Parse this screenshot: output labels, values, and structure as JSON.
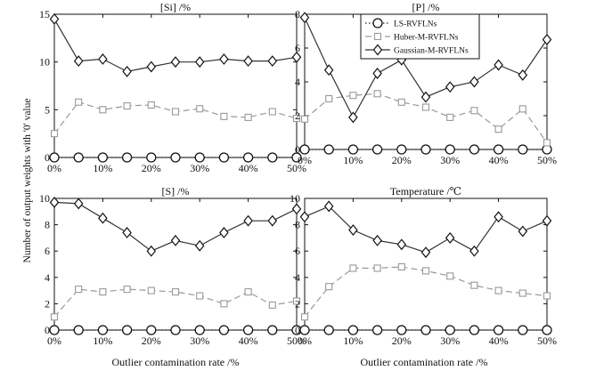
{
  "figure": {
    "ylabel": "Number of output weights with '0' value",
    "xlabel": "Outlier contamination rate /%"
  },
  "legend": {
    "entries": [
      "LS-RVFLNs",
      "Huber-M-RVFLNs",
      "Gaussian-M-RVFLNs"
    ]
  },
  "chart_data": [
    {
      "type": "line",
      "title": "[Si] /%",
      "categories": [
        "0%",
        "5%",
        "10%",
        "15%",
        "20%",
        "25%",
        "30%",
        "35%",
        "40%",
        "45%",
        "50%"
      ],
      "x_tick_labels": [
        "0%",
        "10%",
        "20%",
        "30%",
        "40%",
        "50%"
      ],
      "ylim": [
        0,
        15
      ],
      "y_ticks": [
        "0",
        "5",
        "10",
        "15"
      ],
      "series": [
        {
          "name": "LS-RVFLNs",
          "values": [
            0,
            0,
            0,
            0,
            0,
            0,
            0,
            0,
            0,
            0,
            0
          ]
        },
        {
          "name": "Huber-M-RVFLNs",
          "values": [
            2.5,
            5.8,
            5.0,
            5.4,
            5.5,
            4.8,
            5.1,
            4.3,
            4.2,
            4.8,
            4.1
          ]
        },
        {
          "name": "Gaussian-M-RVFLNs",
          "values": [
            14.5,
            10.1,
            10.3,
            9.0,
            9.5,
            10.0,
            10.0,
            10.3,
            10.1,
            10.1,
            10.5
          ]
        }
      ]
    },
    {
      "type": "line",
      "title": "[P] /%",
      "categories": [
        "0%",
        "5%",
        "10%",
        "15%",
        "20%",
        "25%",
        "30%",
        "35%",
        "40%",
        "45%",
        "50%"
      ],
      "x_tick_labels": [
        "0%",
        "10%",
        "20%",
        "30%",
        "40%",
        "50%"
      ],
      "ylim": [
        0,
        8
      ],
      "y_ticks": [
        "0",
        "2",
        "4",
        "6",
        "8"
      ],
      "series": [
        {
          "name": "LS-RVFLNs",
          "values": [
            0,
            0,
            0,
            0,
            0,
            0,
            0,
            0,
            0,
            0,
            0
          ]
        },
        {
          "name": "Huber-M-RVFLNs",
          "values": [
            1.8,
            3.0,
            3.2,
            3.3,
            2.8,
            2.5,
            1.9,
            2.3,
            1.2,
            2.4,
            0.4
          ]
        },
        {
          "name": "Gaussian-M-RVFLNs",
          "values": [
            7.8,
            4.7,
            1.9,
            4.5,
            5.3,
            3.1,
            3.7,
            4.0,
            5.0,
            4.4,
            6.5
          ]
        }
      ]
    },
    {
      "type": "line",
      "title": "[S] /%",
      "categories": [
        "0%",
        "5%",
        "10%",
        "15%",
        "20%",
        "25%",
        "30%",
        "35%",
        "40%",
        "45%",
        "50%"
      ],
      "x_tick_labels": [
        "0%",
        "10%",
        "20%",
        "30%",
        "40%",
        "50%"
      ],
      "ylim": [
        0,
        10
      ],
      "y_ticks": [
        "0",
        "2",
        "4",
        "6",
        "8",
        "10"
      ],
      "series": [
        {
          "name": "LS-RVFLNs",
          "values": [
            0,
            0,
            0,
            0,
            0,
            0,
            0,
            0,
            0,
            0,
            0
          ]
        },
        {
          "name": "Huber-M-RVFLNs",
          "values": [
            1.0,
            3.1,
            2.9,
            3.1,
            3.0,
            2.9,
            2.6,
            2.0,
            2.9,
            1.9,
            2.2
          ]
        },
        {
          "name": "Gaussian-M-RVFLNs",
          "values": [
            9.7,
            9.6,
            8.5,
            7.4,
            6.0,
            6.8,
            6.4,
            7.4,
            8.3,
            8.3,
            9.2
          ]
        }
      ]
    },
    {
      "type": "line",
      "title": "Temperature /℃",
      "categories": [
        "0%",
        "5%",
        "10%",
        "15%",
        "20%",
        "25%",
        "30%",
        "35%",
        "40%",
        "45%",
        "50%"
      ],
      "x_tick_labels": [
        "0%",
        "10%",
        "20%",
        "30%",
        "40%",
        "50%"
      ],
      "ylim": [
        0,
        10
      ],
      "y_ticks": [
        "0",
        "2",
        "4",
        "6",
        "8",
        "10"
      ],
      "series": [
        {
          "name": "LS-RVFLNs",
          "values": [
            0,
            0,
            0,
            0,
            0,
            0,
            0,
            0,
            0,
            0,
            0
          ]
        },
        {
          "name": "Huber-M-RVFLNs",
          "values": [
            1.0,
            3.3,
            4.7,
            4.7,
            4.8,
            4.5,
            4.1,
            3.4,
            3.0,
            2.8,
            2.6
          ]
        },
        {
          "name": "Gaussian-M-RVFLNs",
          "values": [
            8.6,
            9.4,
            7.6,
            6.8,
            6.5,
            5.9,
            7.0,
            6.0,
            8.6,
            7.5,
            8.3
          ]
        }
      ]
    }
  ]
}
